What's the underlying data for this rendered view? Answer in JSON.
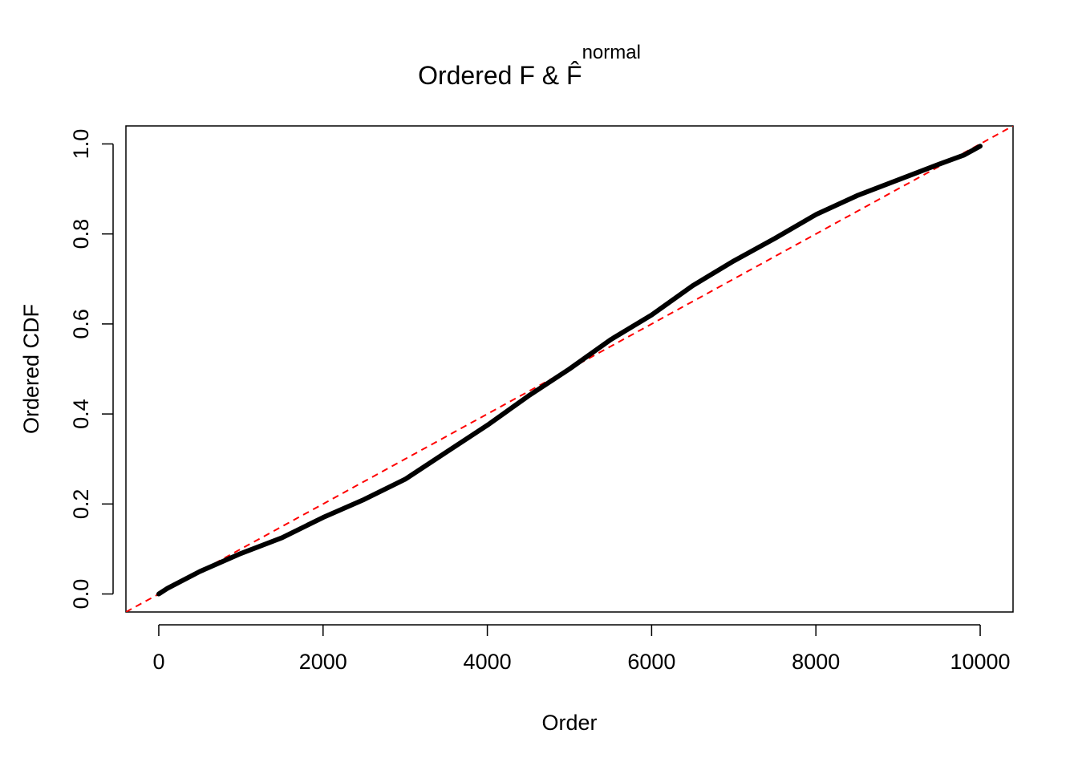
{
  "chart_data": {
    "type": "line",
    "title": "Ordered F & F̂",
    "title_superscript": "normal",
    "xlabel": "Order",
    "ylabel": "Ordered CDF",
    "x": [
      0,
      100,
      500,
      1000,
      1500,
      2000,
      2500,
      3000,
      3500,
      4000,
      4500,
      5000,
      5500,
      6000,
      6500,
      7000,
      7500,
      8000,
      8500,
      9000,
      9500,
      9800,
      10000
    ],
    "series": [
      {
        "color": "#000000",
        "values": [
          0.0,
          0.012,
          0.05,
          0.09,
          0.125,
          0.17,
          0.21,
          0.255,
          0.315,
          0.375,
          0.44,
          0.5,
          0.565,
          0.62,
          0.685,
          0.74,
          0.79,
          0.843,
          0.885,
          0.92,
          0.955,
          0.975,
          0.995
        ]
      }
    ],
    "reference_line": {
      "slope": 0.0001,
      "intercept": 0,
      "color": "#ff0000"
    },
    "xlim": [
      -400,
      10400
    ],
    "ylim": [
      -0.04,
      1.04
    ],
    "xticks": [
      0,
      2000,
      4000,
      6000,
      8000,
      10000
    ],
    "yticks": [
      {
        "value": 0,
        "label": "0.0"
      },
      0.2,
      0.4,
      0.6,
      0.8,
      {
        "value": 1,
        "label": "1.0"
      }
    ]
  }
}
